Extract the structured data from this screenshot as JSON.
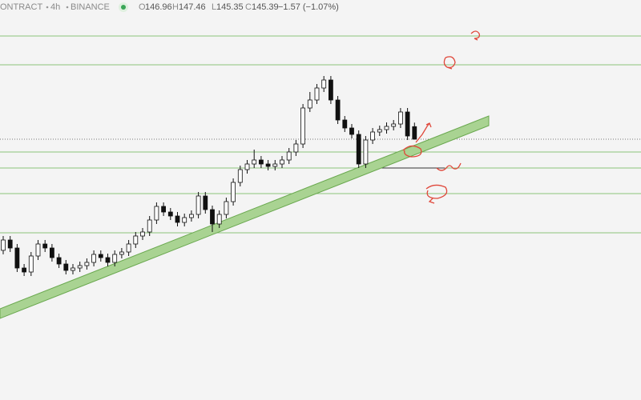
{
  "header": {
    "symbol": "ONTRACT",
    "interval": "4h",
    "exchange": "BINANCE",
    "o_label": "O",
    "h_label": "H",
    "l_label": "L",
    "c_label": "C",
    "change": "−1.57 (−1.07%)"
  },
  "chart_data": {
    "type": "candlestick",
    "ylim": [
      112.79,
      162.79
    ],
    "levels": [
      158.29,
      154.69,
      143.79,
      141.79,
      138.59,
      133.69
    ],
    "level_color": "#8cc47a",
    "up_color": "#ffffff",
    "down_color": "#111111",
    "open": [
      131.5,
      132.79,
      131.79,
      129.29,
      128.79,
      130.79,
      132.29,
      131.79,
      130.59,
      129.79,
      128.99,
      129.29,
      129.59,
      129.99,
      130.99,
      130.59,
      129.99,
      130.99,
      131.29,
      132.29,
      133.29,
      133.79,
      135.29,
      136.99,
      136.29,
      135.79,
      134.99,
      135.59,
      135.99,
      138.29,
      136.59,
      134.79,
      135.99,
      137.59,
      139.99,
      141.59,
      142.29,
      142.79,
      142.29,
      141.99,
      142.29,
      142.79,
      143.79,
      144.79,
      149.29,
      150.29,
      151.79,
      152.79,
      150.29,
      147.79,
      146.79,
      145.99,
      142.29,
      145.29,
      146.29,
      146.59,
      146.99,
      147.29,
      148.79,
      146.96
    ],
    "high": [
      133.29,
      133.29,
      132.29,
      129.79,
      131.29,
      132.79,
      132.79,
      132.29,
      131.09,
      130.29,
      129.79,
      130.09,
      130.49,
      131.49,
      131.49,
      131.09,
      131.49,
      131.79,
      132.79,
      133.79,
      134.29,
      135.79,
      137.49,
      137.49,
      136.79,
      136.29,
      136.09,
      136.49,
      138.79,
      138.79,
      137.09,
      136.49,
      138.09,
      140.49,
      142.09,
      142.79,
      144.09,
      143.29,
      142.79,
      142.79,
      143.29,
      144.29,
      145.29,
      149.79,
      151.29,
      152.29,
      153.29,
      153.29,
      150.79,
      148.29,
      147.29,
      146.49,
      145.79,
      146.79,
      147.09,
      147.49,
      147.79,
      149.29,
      149.29,
      147.46
    ],
    "low": [
      131.0,
      131.29,
      128.79,
      128.29,
      128.29,
      130.29,
      131.29,
      130.09,
      129.29,
      128.49,
      128.49,
      128.79,
      129.09,
      129.49,
      130.09,
      129.49,
      129.49,
      130.49,
      130.79,
      131.79,
      132.79,
      133.29,
      134.79,
      135.79,
      135.29,
      134.49,
      134.49,
      135.09,
      135.49,
      136.09,
      133.79,
      134.29,
      135.49,
      137.09,
      139.49,
      141.09,
      141.79,
      141.79,
      141.49,
      141.49,
      141.79,
      142.29,
      143.29,
      144.29,
      148.79,
      149.79,
      151.29,
      149.79,
      147.29,
      146.29,
      145.49,
      141.79,
      141.79,
      144.79,
      145.79,
      146.09,
      146.49,
      146.79,
      145.29,
      145.35
    ],
    "close": [
      132.79,
      131.79,
      129.29,
      128.79,
      130.79,
      132.29,
      131.79,
      130.59,
      129.79,
      128.99,
      129.29,
      129.59,
      129.99,
      130.99,
      130.59,
      129.99,
      130.99,
      131.29,
      132.29,
      133.29,
      133.79,
      135.29,
      136.99,
      136.29,
      135.79,
      134.99,
      135.59,
      135.99,
      138.29,
      136.59,
      134.79,
      135.99,
      137.59,
      139.99,
      141.59,
      142.29,
      142.79,
      142.29,
      141.99,
      142.29,
      142.79,
      143.79,
      144.79,
      149.29,
      150.29,
      151.79,
      152.79,
      150.29,
      147.79,
      146.79,
      145.99,
      142.29,
      145.29,
      146.29,
      146.59,
      146.99,
      147.29,
      148.79,
      145.79,
      145.39
    ]
  }
}
